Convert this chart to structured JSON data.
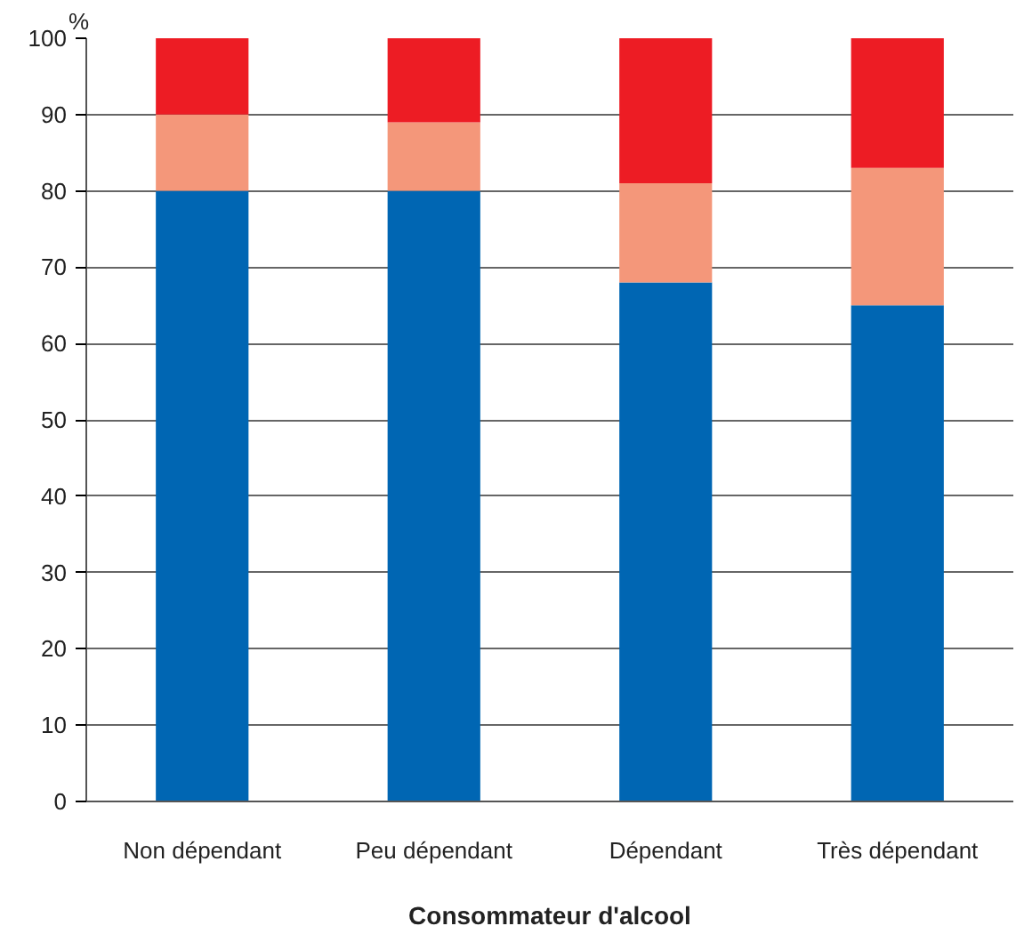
{
  "chart_data": {
    "type": "bar",
    "stacked": true,
    "xlabel": "Consommateur d'alcool",
    "ylabel": "%",
    "categories": [
      "Non dépendant",
      "Peu dépendant",
      "Dépendant",
      "Très dépendant"
    ],
    "series": [
      {
        "color": "#0066b3",
        "values": [
          80,
          80,
          68,
          65
        ]
      },
      {
        "color": "#f4977a",
        "values": [
          10,
          9,
          13,
          18
        ]
      },
      {
        "color": "#ed1c24",
        "values": [
          10,
          11,
          19,
          17
        ]
      }
    ],
    "ylim": [
      0,
      100
    ],
    "yticks": [
      0,
      10,
      20,
      30,
      40,
      50,
      60,
      70,
      80,
      90,
      100
    ],
    "grid": "y"
  }
}
